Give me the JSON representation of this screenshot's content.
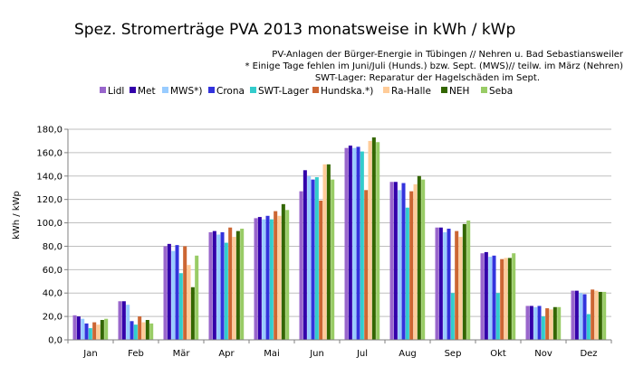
{
  "chart_data": {
    "type": "bar",
    "title": "Spez. Stromerträge PVA 2013  monatsweise in kWh / kWp",
    "subtitle_lines": [
      "PV-Anlagen der Bürger-Energie in Tübingen  //    Nehren u. Bad Sebastiansweiler",
      "* Einige Tage fehlen im Juni/Juli (Hunds.) bzw. Sept. (MWS)// teilw. im März (Nehren)",
      "SWT-Lager: Reparatur der Hagelschäden im Sept."
    ],
    "ylabel": "kWh / kWp",
    "xlabel": "",
    "ylim": [
      0,
      180
    ],
    "y_ticks": [
      "0,0",
      "20,0",
      "40,0",
      "60,0",
      "80,0",
      "100,0",
      "120,0",
      "140,0",
      "160,0",
      "180,0"
    ],
    "grid": true,
    "legend_position": "top",
    "categories": [
      "Jan",
      "Feb",
      "Mär",
      "Apr",
      "Mai",
      "Jun",
      "Jul",
      "Aug",
      "Sep",
      "Okt",
      "Nov",
      "Dez"
    ],
    "series": [
      {
        "name": "Lidl",
        "color": "#9966cc",
        "values": [
          21,
          33,
          80,
          92,
          104,
          127,
          164,
          135,
          96,
          74,
          29,
          42
        ]
      },
      {
        "name": "Met",
        "color": "#3300aa",
        "values": [
          20,
          33,
          82,
          93,
          105,
          145,
          166,
          135,
          96,
          75,
          29,
          42
        ]
      },
      {
        "name": "MWS*)",
        "color": "#99ccff",
        "values": [
          18,
          30,
          76,
          90,
          103,
          140,
          164,
          128,
          92,
          71,
          28,
          40
        ]
      },
      {
        "name": "Crona",
        "color": "#3333dd",
        "values": [
          14,
          16,
          81,
          92,
          106,
          137,
          165,
          134,
          95,
          72,
          29,
          39
        ]
      },
      {
        "name": "SWT-Lager",
        "color": "#33cccc",
        "values": [
          10,
          13,
          57,
          83,
          103,
          139,
          161,
          113,
          40,
          40,
          20,
          22
        ]
      },
      {
        "name": "Hundska.*)",
        "color": "#cc6633",
        "values": [
          15,
          20,
          80,
          96,
          110,
          119,
          128,
          127,
          93,
          69,
          27,
          43
        ]
      },
      {
        "name": "Ra-Halle",
        "color": "#ffcc99",
        "values": [
          13,
          15,
          64,
          88,
          106,
          150,
          170,
          133,
          88,
          70,
          26,
          42
        ]
      },
      {
        "name": "NEH",
        "color": "#336600",
        "values": [
          17,
          17,
          45,
          93,
          116,
          150,
          173,
          140,
          99,
          70,
          28,
          41
        ]
      },
      {
        "name": "Seba",
        "color": "#99cc66",
        "values": [
          18,
          14,
          72,
          95,
          111,
          137,
          169,
          137,
          102,
          74,
          28,
          41
        ]
      }
    ]
  }
}
